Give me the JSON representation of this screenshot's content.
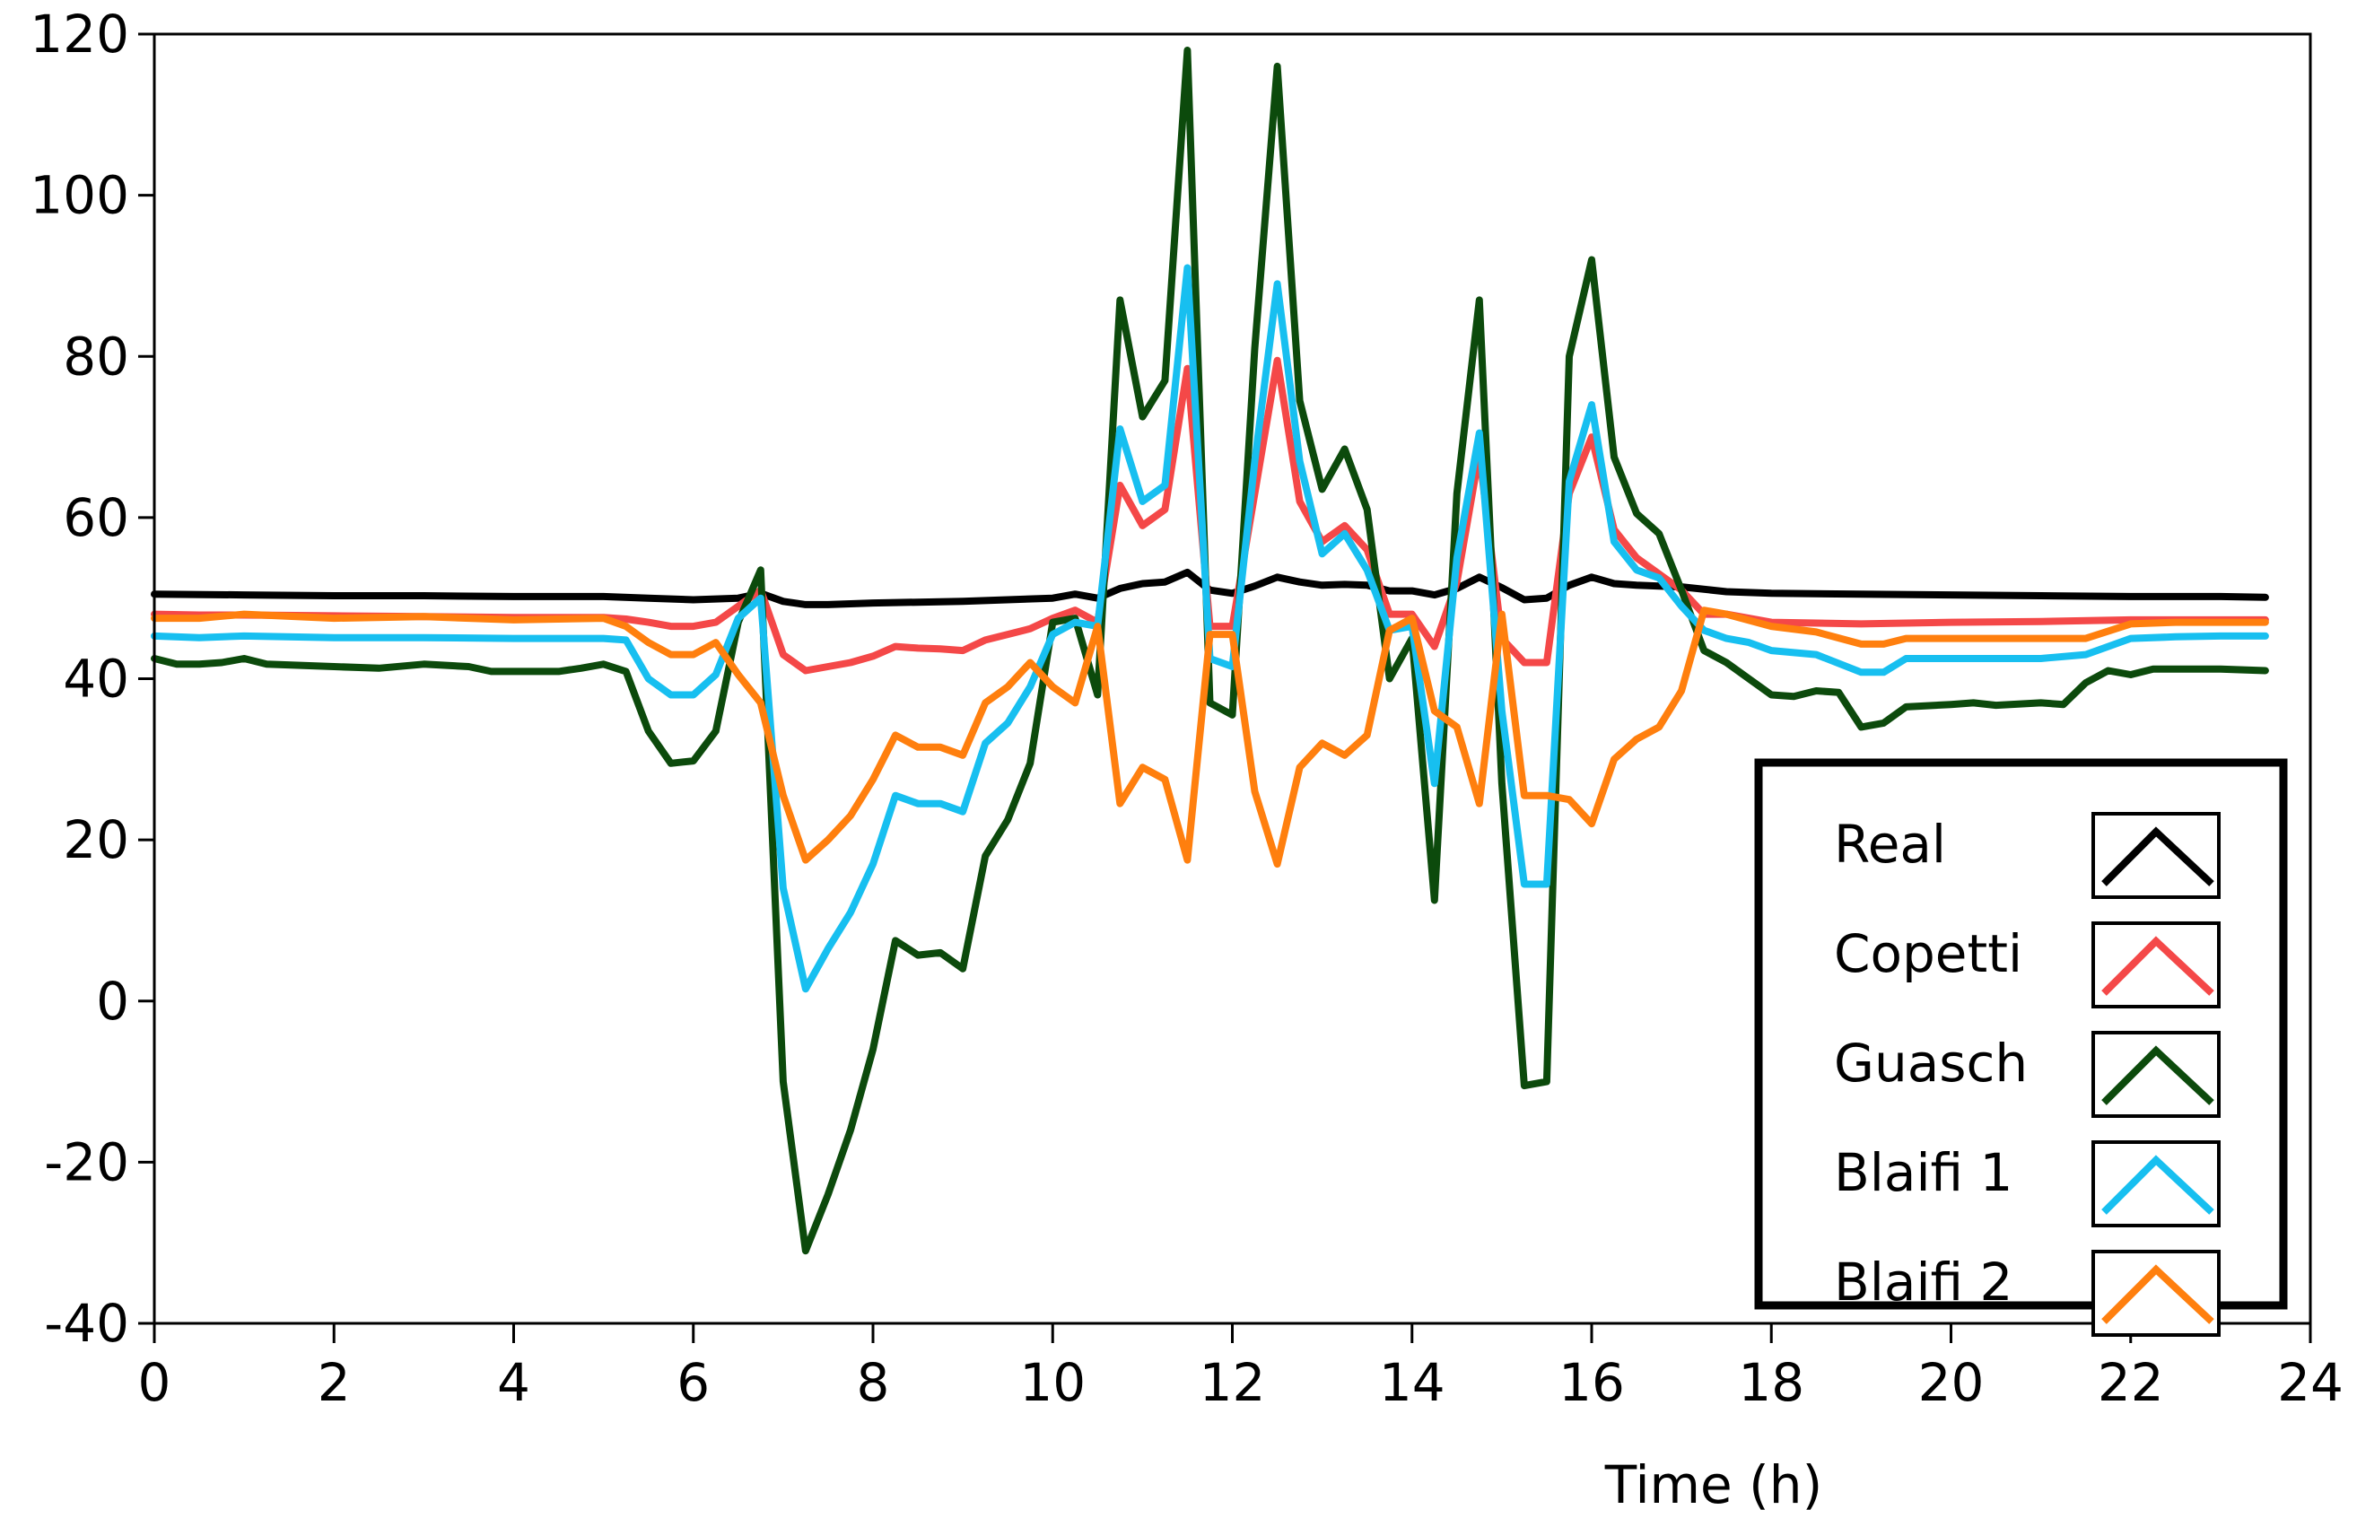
{
  "chart_data": {
    "type": "line",
    "title": "",
    "xlabel": "Time (h)",
    "ylabel": "",
    "xlim": [
      0,
      24
    ],
    "ylim": [
      -40,
      120
    ],
    "xticks": [
      0,
      2,
      4,
      6,
      8,
      10,
      12,
      14,
      16,
      18,
      20,
      22,
      24
    ],
    "xtick_labels": [
      "0",
      "2",
      "4",
      "6",
      "8",
      "10",
      "12",
      "14",
      "16",
      "18",
      "20",
      "22",
      "24"
    ],
    "yticks": [
      -40,
      -20,
      0,
      20,
      40,
      60,
      80,
      100,
      120
    ],
    "ytick_labels": [
      "-40",
      "-20",
      "0",
      "20",
      "40",
      "60",
      "80",
      "100",
      "120"
    ],
    "grid": false,
    "legend_position": "bottom-right",
    "series": [
      {
        "name": "Real",
        "color": "#000000",
        "x": [
          0,
          1,
          2,
          3,
          4,
          5,
          5.5,
          6,
          6.5,
          6.75,
          7,
          7.25,
          7.5,
          8,
          9,
          10,
          10.25,
          10.5,
          10.75,
          11,
          11.25,
          11.5,
          11.75,
          12,
          12.25,
          12.5,
          12.75,
          13,
          13.25,
          13.5,
          13.75,
          14,
          14.25,
          14.5,
          14.75,
          15,
          15.25,
          15.5,
          15.75,
          16,
          16.25,
          16.5,
          16.75,
          17,
          17.5,
          18,
          19,
          20,
          21,
          22,
          23,
          23.5
        ],
        "y": [
          50.5,
          50.4,
          50.3,
          50.3,
          50.2,
          50.2,
          50.0,
          49.8,
          50.0,
          50.6,
          49.6,
          49.2,
          49.2,
          49.4,
          49.6,
          50.0,
          50.5,
          50.0,
          51.2,
          51.8,
          52.0,
          53.2,
          51.0,
          50.6,
          51.5,
          52.6,
          52.0,
          51.6,
          51.7,
          51.6,
          50.9,
          50.9,
          50.4,
          51.2,
          52.6,
          51.3,
          49.8,
          50.0,
          51.6,
          52.6,
          51.8,
          51.6,
          51.5,
          51.4,
          50.8,
          50.6,
          50.5,
          50.4,
          50.3,
          50.2,
          50.2,
          50.1
        ]
      },
      {
        "name": "Copetti",
        "color": "#f44848",
        "x": [
          0,
          0.5,
          1,
          2,
          3,
          4,
          5,
          5.25,
          5.5,
          5.75,
          6,
          6.25,
          6.5,
          6.75,
          7,
          7.25,
          7.5,
          7.75,
          8,
          8.25,
          8.5,
          8.75,
          9,
          9.25,
          9.5,
          9.75,
          10,
          10.25,
          10.5,
          10.75,
          11,
          11.25,
          11.5,
          11.75,
          12,
          12.25,
          12.5,
          12.75,
          13,
          13.25,
          13.5,
          13.75,
          14,
          14.25,
          14.5,
          14.75,
          15,
          15.25,
          15.5,
          15.75,
          16,
          16.25,
          16.5,
          16.75,
          17,
          17.25,
          17.5,
          17.75,
          18,
          19,
          20,
          21,
          22,
          23,
          23.5
        ],
        "y": [
          48.0,
          47.9,
          47.9,
          47.8,
          47.7,
          47.6,
          47.6,
          47.4,
          47.0,
          46.5,
          46.5,
          47.0,
          49.0,
          51.0,
          43.0,
          41.0,
          41.5,
          42.0,
          42.8,
          44.0,
          43.8,
          43.7,
          43.5,
          44.8,
          45.5,
          46.2,
          47.5,
          48.5,
          47.0,
          64.0,
          59.0,
          61.0,
          78.5,
          46.5,
          46.5,
          63.0,
          79.5,
          62.0,
          57.0,
          59.0,
          56.0,
          48.0,
          48.0,
          44.0,
          52.0,
          68.0,
          45.0,
          42.0,
          42.0,
          63.0,
          70.0,
          58.5,
          55.0,
          53.0,
          51.0,
          48.0,
          48.0,
          47.5,
          47.0,
          46.8,
          47.0,
          47.1,
          47.3,
          47.3,
          47.3
        ]
      },
      {
        "name": "Guasch",
        "color": "#0c4a0c",
        "x": [
          0,
          0.25,
          0.5,
          0.75,
          1,
          1.25,
          2,
          2.5,
          3,
          3.5,
          3.75,
          4,
          4.5,
          4.75,
          5,
          5.25,
          5.5,
          5.75,
          6,
          6.25,
          6.5,
          6.75,
          7,
          7.25,
          7.5,
          7.75,
          8,
          8.25,
          8.5,
          8.75,
          9,
          9.25,
          9.5,
          9.75,
          10,
          10.25,
          10.5,
          10.75,
          11,
          11.25,
          11.5,
          11.75,
          12,
          12.25,
          12.5,
          12.75,
          13,
          13.25,
          13.5,
          13.75,
          14,
          14.25,
          14.5,
          14.75,
          15,
          15.25,
          15.5,
          15.75,
          16,
          16.25,
          16.5,
          16.75,
          17,
          17.25,
          17.5,
          17.75,
          18,
          18.25,
          18.5,
          18.75,
          19,
          19.25,
          19.5,
          20,
          20.25,
          20.5,
          21,
          21.25,
          21.5,
          21.75,
          22,
          22.25,
          22.5,
          23,
          23.5
        ],
        "y": [
          42.5,
          41.8,
          41.8,
          42.0,
          42.5,
          41.8,
          41.5,
          41.3,
          41.8,
          41.5,
          40.9,
          40.9,
          40.9,
          41.3,
          41.8,
          40.9,
          33.5,
          29.5,
          29.8,
          33.5,
          47.0,
          53.5,
          -10.0,
          -31.0,
          -24.0,
          -16.0,
          -6.0,
          7.5,
          5.7,
          6.0,
          4.0,
          18.0,
          22.5,
          29.5,
          47.0,
          47.5,
          38.0,
          87.0,
          72.5,
          77.0,
          118.0,
          37.0,
          35.5,
          81.0,
          116.0,
          74.5,
          63.5,
          68.5,
          61.0,
          40.0,
          45.0,
          12.5,
          63.0,
          87.0,
          27.0,
          -10.5,
          -10.0,
          80.0,
          92.0,
          67.5,
          60.5,
          58.0,
          51.0,
          43.5,
          42.0,
          40.0,
          38.0,
          37.8,
          38.5,
          38.3,
          34.0,
          34.5,
          36.5,
          36.8,
          37.0,
          36.7,
          37.0,
          36.8,
          39.5,
          41.0,
          40.5,
          41.2,
          41.2,
          41.2,
          41.0
        ]
      },
      {
        "name": "Blaifi 1",
        "color": "#17bff0",
        "x": [
          0,
          0.5,
          1,
          2,
          3,
          4,
          5,
          5.25,
          5.5,
          5.75,
          6,
          6.25,
          6.5,
          6.75,
          7,
          7.25,
          7.5,
          7.75,
          8,
          8.25,
          8.5,
          8.75,
          9,
          9.25,
          9.5,
          9.75,
          10,
          10.25,
          10.5,
          10.75,
          11,
          11.25,
          11.5,
          11.75,
          12,
          12.25,
          12.5,
          12.75,
          13,
          13.25,
          13.5,
          13.75,
          14,
          14.25,
          14.5,
          14.75,
          15,
          15.25,
          15.5,
          15.75,
          16,
          16.25,
          16.5,
          16.75,
          17,
          17.25,
          17.5,
          17.75,
          18,
          18.5,
          19,
          19.25,
          19.5,
          20,
          21,
          21.5,
          22,
          22.5,
          23,
          23.5
        ],
        "y": [
          45.3,
          45.1,
          45.3,
          45.1,
          45.1,
          45.0,
          45.0,
          44.8,
          40.0,
          38.0,
          38.0,
          40.5,
          47.5,
          50.0,
          14.0,
          1.5,
          6.5,
          11.0,
          17.0,
          25.5,
          24.5,
          24.5,
          23.5,
          32.0,
          34.5,
          39.0,
          45.5,
          47.0,
          46.5,
          71.0,
          62.0,
          64.0,
          91.0,
          42.5,
          41.5,
          67.0,
          89.0,
          67.0,
          55.5,
          58.0,
          53.5,
          46.0,
          46.5,
          27.0,
          55.0,
          70.5,
          36.0,
          14.5,
          14.5,
          64.5,
          74.0,
          57.0,
          53.5,
          52.5,
          49.0,
          46.0,
          45.0,
          44.5,
          43.5,
          43.0,
          40.8,
          40.8,
          42.5,
          42.5,
          42.5,
          43.0,
          45.0,
          45.2,
          45.3,
          45.3
        ]
      },
      {
        "name": "Blaifi 2",
        "color": "#ff7f0e",
        "x": [
          0,
          0.5,
          1,
          2,
          3,
          4,
          5,
          5.25,
          5.5,
          5.75,
          6,
          6.25,
          6.5,
          6.75,
          7,
          7.25,
          7.5,
          7.75,
          8,
          8.25,
          8.5,
          8.75,
          9,
          9.25,
          9.5,
          9.75,
          10,
          10.25,
          10.5,
          10.75,
          11,
          11.25,
          11.5,
          11.75,
          12,
          12.25,
          12.5,
          12.75,
          13,
          13.25,
          13.5,
          13.75,
          14,
          14.25,
          14.5,
          14.75,
          15,
          15.25,
          15.5,
          15.75,
          16,
          16.25,
          16.5,
          16.75,
          17,
          17.25,
          17.5,
          18,
          18.5,
          19,
          19.25,
          19.5,
          20,
          21,
          21.5,
          22,
          22.5,
          23,
          23.5
        ],
        "y": [
          47.5,
          47.5,
          48.0,
          47.5,
          47.7,
          47.3,
          47.5,
          46.5,
          44.5,
          43.0,
          43.0,
          44.5,
          40.5,
          37.0,
          25.5,
          17.5,
          20.0,
          23.0,
          27.5,
          33.0,
          31.5,
          31.5,
          30.5,
          37.0,
          39.0,
          42.0,
          39.0,
          37.0,
          46.5,
          24.5,
          29.0,
          27.5,
          17.5,
          45.5,
          45.5,
          26.0,
          17.0,
          29.0,
          32.0,
          30.5,
          33.0,
          46.0,
          47.5,
          36.0,
          34.0,
          24.5,
          48.0,
          25.5,
          25.5,
          25.0,
          22.0,
          30.0,
          32.5,
          34.0,
          38.5,
          48.5,
          48.0,
          46.5,
          45.8,
          44.3,
          44.3,
          45.0,
          45.0,
          45.0,
          45.0,
          46.8,
          47.0,
          47.0,
          47.0
        ]
      }
    ]
  }
}
